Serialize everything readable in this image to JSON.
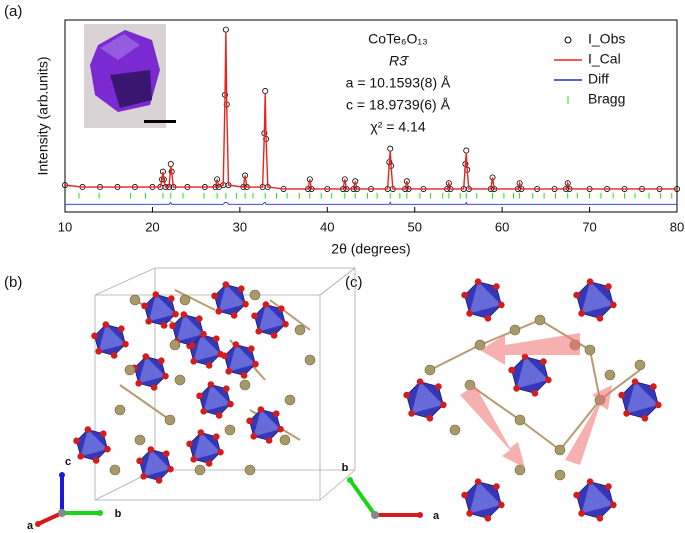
{
  "chart_data": {
    "type": "line",
    "panel_label": "(a)",
    "annotations": [
      "CoTe₆O₁₃",
      "R3̄",
      "a = 10.1593(8) Å",
      "c = 18.9739(6) Å",
      "χ² = 4.14"
    ],
    "xlabel": "2θ (degrees)",
    "ylabel": "Intensity (arb.units)",
    "xlim": [
      10,
      80
    ],
    "xticks": [
      10,
      20,
      30,
      40,
      50,
      60,
      70,
      80
    ],
    "ylim": [
      0,
      100
    ],
    "legend": "upper right",
    "x": [
      10,
      12,
      14,
      16,
      18,
      20,
      20.9,
      21.1,
      21.2,
      21.3,
      21.5,
      21.9,
      22.1,
      22.2,
      22.4,
      24,
      26,
      27.2,
      27.4,
      27.6,
      28.1,
      28.3,
      28.4,
      28.5,
      28.7,
      30.4,
      30.6,
      30.8,
      32.6,
      32.8,
      32.9,
      33.0,
      33.2,
      35,
      37.8,
      38.0,
      38.2,
      40,
      41.8,
      42.0,
      42.2,
      43.0,
      43.2,
      43.4,
      45,
      46.9,
      47.1,
      47.2,
      47.3,
      47.5,
      48.9,
      49.1,
      49.3,
      51,
      53.7,
      53.9,
      54.1,
      55.6,
      55.8,
      55.9,
      56.0,
      56.2,
      58.7,
      58.9,
      59.1,
      61.8,
      62.0,
      62.2,
      64,
      66,
      67.3,
      67.5,
      67.7,
      70,
      72,
      74,
      76,
      78,
      80
    ],
    "series": [
      {
        "name": "I_Obs",
        "color": "#000000",
        "marker": "circle",
        "values": [
          14,
          13,
          13,
          13,
          13,
          13,
          13,
          17,
          21,
          17,
          13,
          13,
          25,
          21,
          13,
          13,
          13,
          13,
          17,
          13,
          14,
          61,
          95,
          56,
          14,
          13,
          19,
          13,
          13,
          41,
          63,
          38,
          13,
          12,
          12,
          17,
          12,
          12,
          12,
          17,
          12,
          12,
          16,
          12,
          12,
          12,
          26,
          33,
          24,
          12,
          12,
          16,
          12,
          12,
          12,
          15,
          12,
          12,
          25,
          32,
          22,
          12,
          12,
          18,
          12,
          12,
          15,
          12,
          12,
          12,
          12,
          15,
          12,
          12,
          12,
          12,
          12,
          12,
          12
        ]
      },
      {
        "name": "I_Cal",
        "color": "#e8231f",
        "values": [
          14,
          13,
          13,
          13,
          13,
          13,
          13,
          17,
          21,
          17,
          13,
          13,
          24,
          21,
          13,
          13,
          13,
          13,
          17,
          13,
          14,
          60,
          94,
          55,
          14,
          13,
          19,
          13,
          13,
          40,
          62,
          38,
          13,
          12,
          12,
          17,
          12,
          12,
          12,
          17,
          12,
          12,
          16,
          12,
          12,
          12,
          26,
          32,
          24,
          12,
          12,
          16,
          12,
          12,
          12,
          15,
          12,
          12,
          25,
          31,
          22,
          12,
          12,
          18,
          12,
          12,
          15,
          12,
          12,
          12,
          12,
          15,
          12,
          12,
          12,
          12,
          12,
          12,
          12
        ]
      },
      {
        "name": "Diff",
        "color": "#1f2fd6",
        "values": [
          4,
          4,
          4,
          4,
          4,
          4,
          4,
          4,
          4,
          4,
          4,
          4,
          5,
          4,
          4,
          4,
          4,
          4,
          4,
          4,
          4,
          5,
          5,
          5,
          4,
          4,
          4,
          4,
          4,
          5,
          5,
          4,
          4,
          4,
          4,
          4,
          4,
          4,
          4,
          4,
          4,
          4,
          4,
          4,
          4,
          4,
          4,
          5,
          4,
          4,
          4,
          4,
          4,
          4,
          4,
          4,
          4,
          4,
          4,
          5,
          4,
          4,
          4,
          4,
          4,
          4,
          4,
          4,
          4,
          4,
          4,
          4,
          4,
          4,
          4,
          4,
          4,
          4,
          4
        ]
      },
      {
        "name": "Bragg",
        "color": "#2fd62f",
        "marker": "tick",
        "x": [
          11.6,
          13.9,
          17.5,
          19.2,
          21.2,
          22.1,
          23.5,
          25.9,
          27.4,
          28.4,
          29.6,
          30.6,
          31.5,
          32.9,
          34.2,
          35.4,
          36.8,
          38.0,
          39.3,
          40.5,
          42.0,
          43.2,
          44.6,
          45.7,
          47.2,
          48.3,
          49.1,
          50.6,
          51.8,
          53.2,
          53.9,
          55.2,
          55.9,
          57.1,
          58.9,
          60.2,
          61.3,
          62.0,
          63.5,
          64.8,
          66.1,
          67.5,
          68.6,
          70.0,
          71.3,
          72.7,
          74.0,
          75.2,
          76.8,
          78.1,
          79.4
        ]
      }
    ]
  },
  "panel_b": {
    "label": "(b)",
    "axes": [
      "c",
      "a",
      "b"
    ]
  },
  "panel_c": {
    "label": "(c)",
    "axes": [
      "b",
      "a"
    ]
  }
}
